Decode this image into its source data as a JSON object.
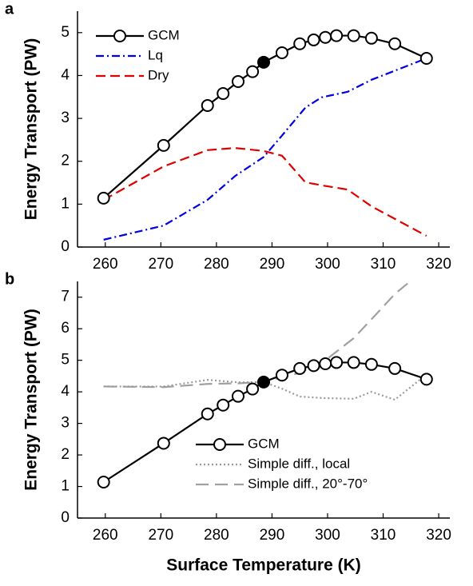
{
  "chart_data": [
    {
      "type": "line",
      "panel_label": "a",
      "ylabel": "Energy Transport (PW)",
      "xlim": [
        255,
        322
      ],
      "xticks": [
        260,
        270,
        280,
        290,
        300,
        310,
        320
      ],
      "ylim": [
        0,
        5.5
      ],
      "yticks": [
        0,
        1,
        2,
        3,
        4,
        5
      ],
      "legend": "upper left",
      "series": [
        {
          "name": "GCM",
          "color": "#000000",
          "dash": "solid",
          "marker": "circle",
          "filled_marker_index": 6,
          "x": [
            259.7,
            270.5,
            278.4,
            281.2,
            283.9,
            286.5,
            288.5,
            291.8,
            295.0,
            297.5,
            299.6,
            301.6,
            304.7,
            307.9,
            312.1,
            317.8
          ],
          "values": [
            1.14,
            2.37,
            3.3,
            3.58,
            3.86,
            4.09,
            4.31,
            4.53,
            4.74,
            4.83,
            4.89,
            4.93,
            4.93,
            4.87,
            4.74,
            4.4
          ]
        },
        {
          "name": "Lq",
          "color": "#0000e0",
          "dash": "dashdot",
          "x": [
            259.7,
            270.5,
            278.4,
            283.4,
            288.5,
            291.8,
            296.0,
            298.9,
            303.6,
            307.9,
            317.8
          ],
          "values": [
            0.17,
            0.5,
            1.1,
            1.66,
            2.1,
            2.6,
            3.25,
            3.49,
            3.62,
            3.9,
            4.4
          ]
        },
        {
          "name": "Dry",
          "color": "#e00000",
          "dash": "dashed",
          "x": [
            259.7,
            270.5,
            278.4,
            283.3,
            288.5,
            291.8,
            296.0,
            298.9,
            303.6,
            307.9,
            317.8
          ],
          "values": [
            1.1,
            1.88,
            2.26,
            2.31,
            2.24,
            2.13,
            1.51,
            1.44,
            1.34,
            0.95,
            0.26
          ]
        }
      ]
    },
    {
      "type": "line",
      "panel_label": "b",
      "ylabel": "Energy Transport (PW)",
      "xlabel": "Surface Temperature (K)",
      "xlim": [
        255,
        322
      ],
      "xticks": [
        260,
        270,
        280,
        290,
        300,
        310,
        320
      ],
      "ylim": [
        0,
        7.5
      ],
      "yticks": [
        0,
        1,
        2,
        3,
        4,
        5,
        6,
        7
      ],
      "legend": "lower center",
      "series": [
        {
          "name": "GCM",
          "color": "#000000",
          "dash": "solid",
          "marker": "circle",
          "filled_marker_index": 6,
          "x": [
            259.7,
            270.5,
            278.4,
            281.2,
            283.9,
            286.5,
            288.5,
            291.8,
            295.0,
            297.5,
            299.6,
            301.6,
            304.7,
            307.9,
            312.1,
            317.8
          ],
          "values": [
            1.14,
            2.37,
            3.3,
            3.58,
            3.86,
            4.09,
            4.31,
            4.53,
            4.74,
            4.83,
            4.89,
            4.93,
            4.93,
            4.87,
            4.74,
            4.4
          ]
        },
        {
          "name": "Simple diff., local",
          "color": "#999999",
          "dash": "dotted",
          "x": [
            259.7,
            270.5,
            278.4,
            283.9,
            288.5,
            291.8,
            295.0,
            299.6,
            304.7,
            307.9,
            312.1,
            317.8
          ],
          "values": [
            4.17,
            4.17,
            4.38,
            4.3,
            4.31,
            4.1,
            3.85,
            3.8,
            3.78,
            4.0,
            3.75,
            4.55
          ]
        },
        {
          "name": "Simple diff., 20°-70°",
          "color": "#a0a0a0",
          "dash": "longdash",
          "x": [
            259.7,
            270.5,
            278.4,
            283.9,
            288.5,
            295.0,
            299.6,
            304.7,
            307.9,
            312.1,
            314.5
          ],
          "values": [
            4.17,
            4.15,
            4.25,
            4.27,
            4.31,
            4.6,
            5.0,
            5.7,
            6.3,
            7.1,
            7.45
          ]
        }
      ]
    }
  ]
}
